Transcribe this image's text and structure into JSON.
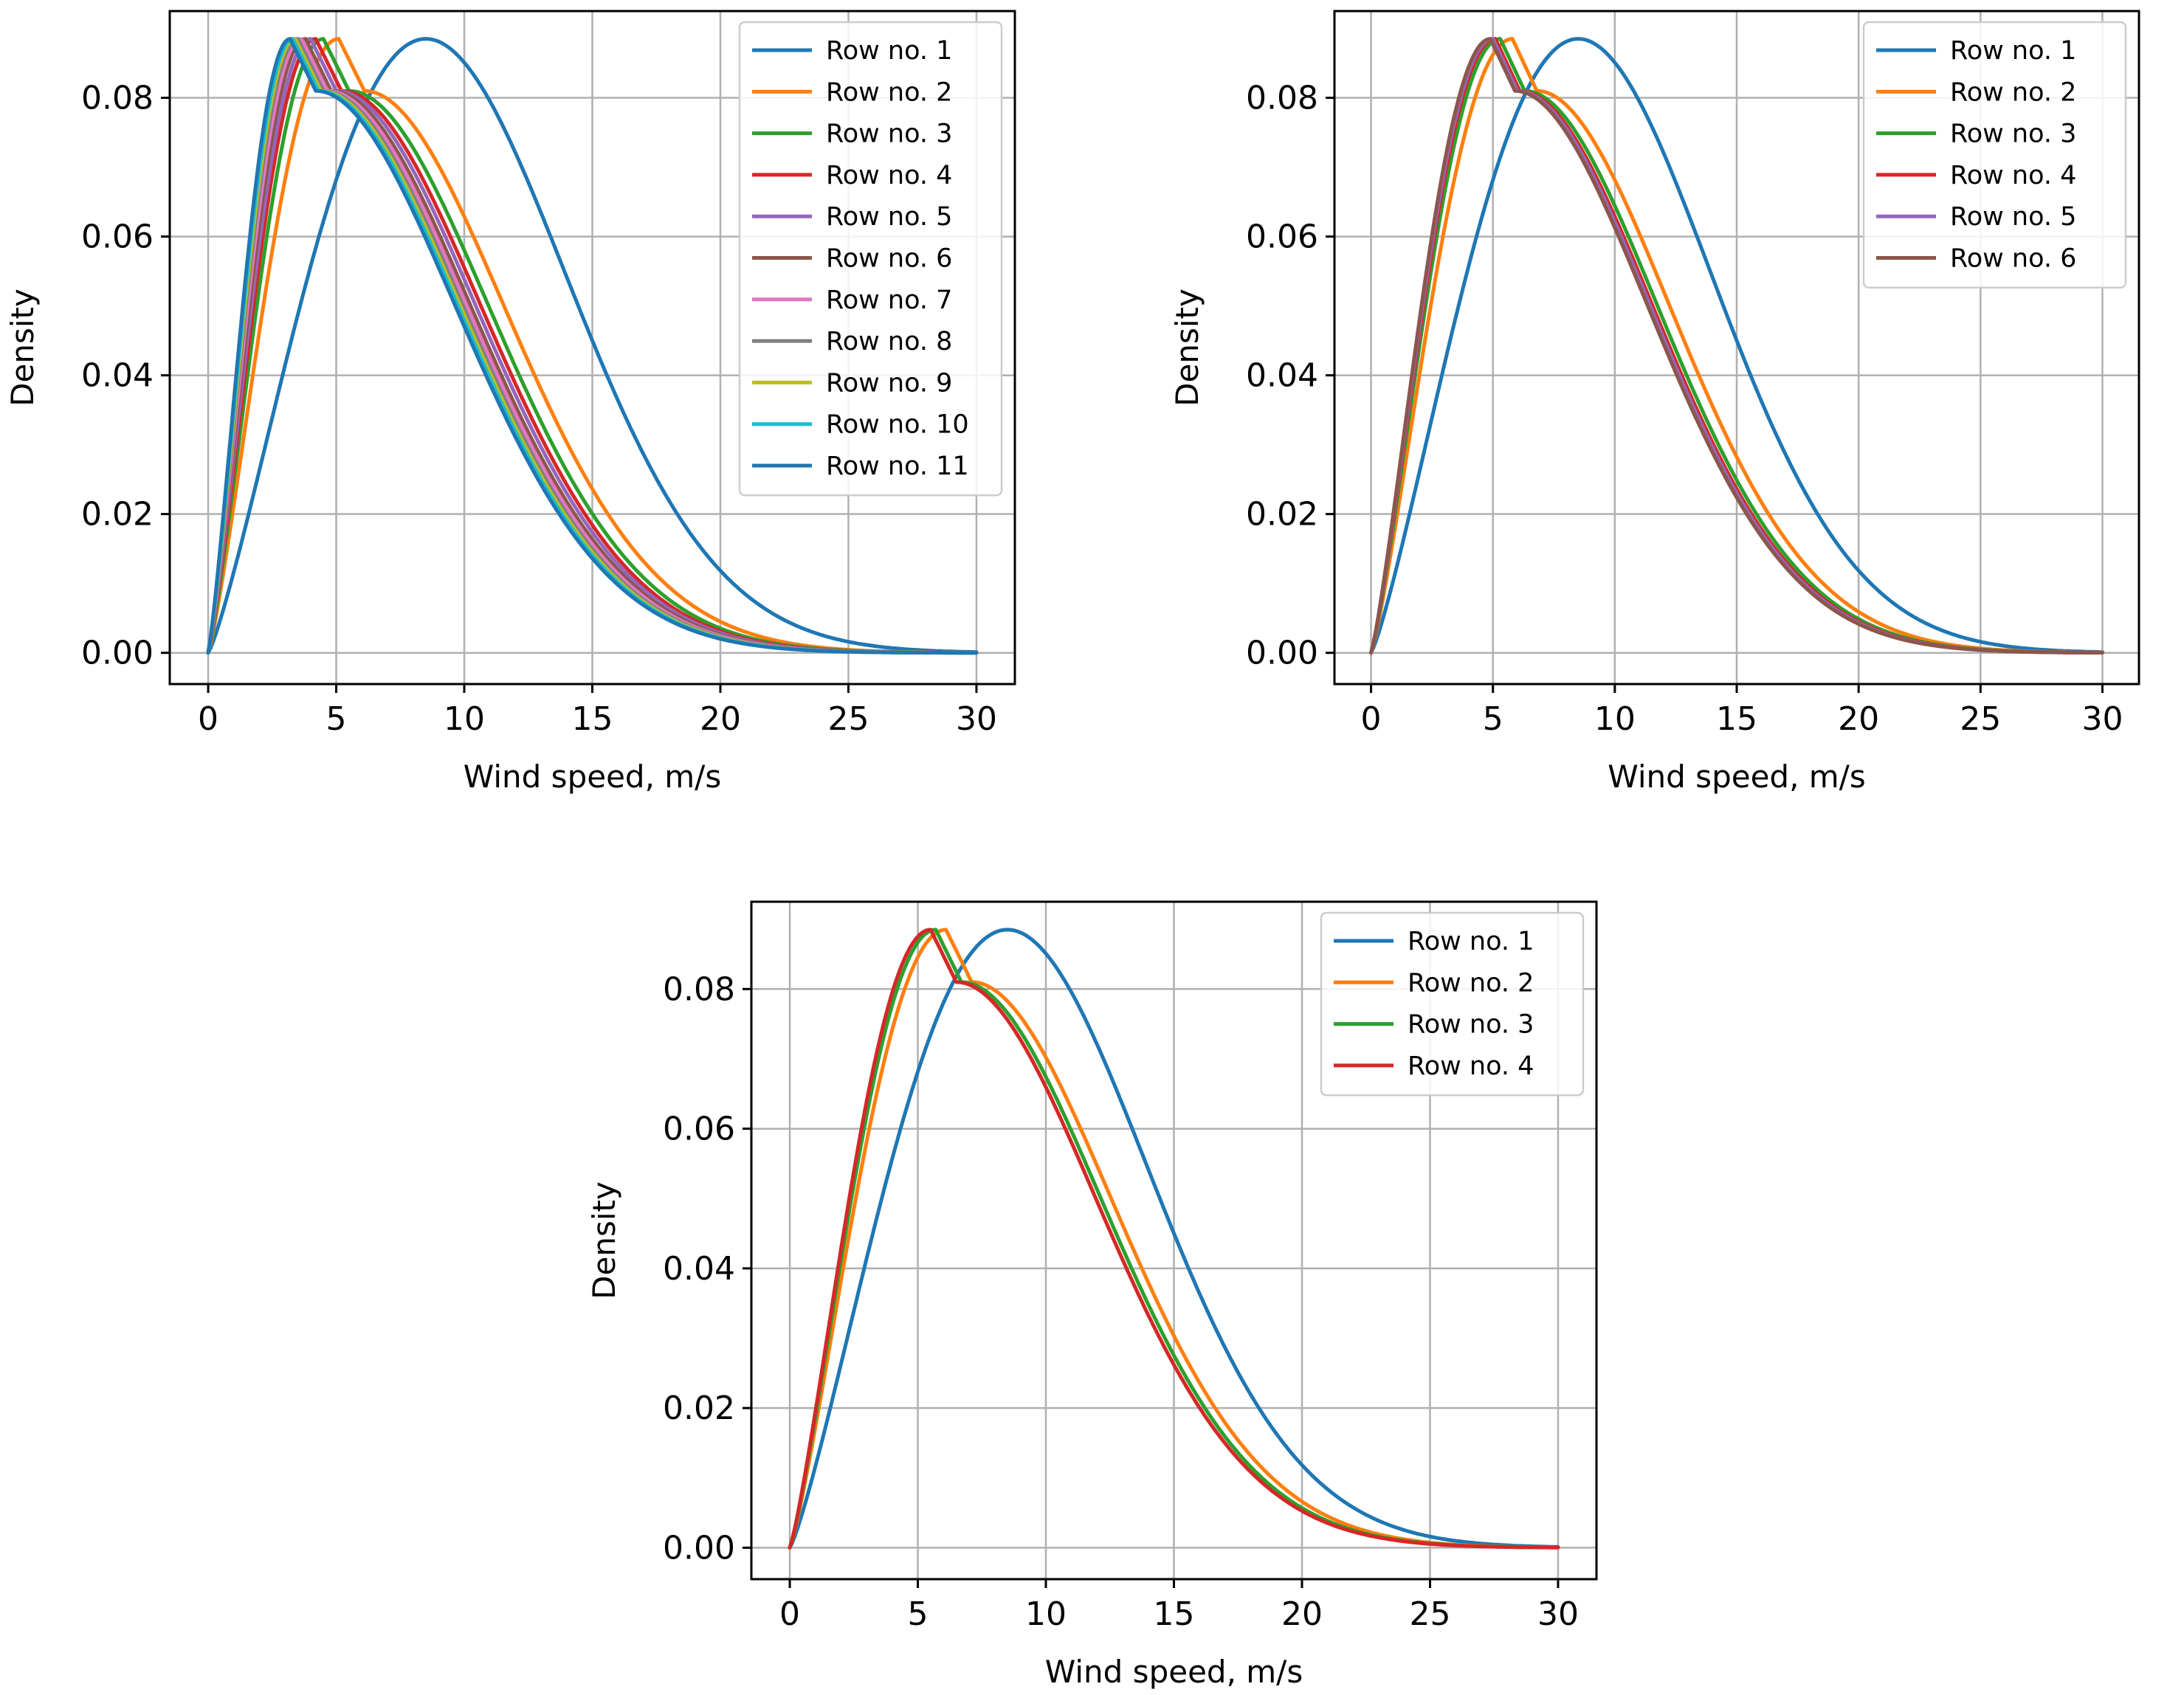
{
  "chart_data": [
    {
      "type": "line",
      "panel": "top-left",
      "xlabel": "Wind speed, m/s",
      "ylabel": "Density",
      "xlim": [
        -1.5,
        31.5
      ],
      "ylim": [
        -0.0045,
        0.0925
      ],
      "xticks": [
        0,
        5,
        10,
        15,
        20,
        25,
        30
      ],
      "yticks": [
        "0.00",
        "0.02",
        "0.04",
        "0.06",
        "0.08"
      ],
      "grid": true,
      "legend_position": "top-right",
      "series": [
        {
          "name": "Row no. 1",
          "color": "#1f77b4",
          "peak_speed": 8.5
        },
        {
          "name": "Row no. 2",
          "color": "#ff7f0e",
          "peak_speed": 5.1
        },
        {
          "name": "Row no. 3",
          "color": "#2ca02c",
          "peak_speed": 4.5
        },
        {
          "name": "Row no. 4",
          "color": "#d62728",
          "peak_speed": 4.2
        },
        {
          "name": "Row no. 5",
          "color": "#9467bd",
          "peak_speed": 4.0
        },
        {
          "name": "Row no. 6",
          "color": "#8c564b",
          "peak_speed": 3.8
        },
        {
          "name": "Row no. 7",
          "color": "#e377c2",
          "peak_speed": 3.65
        },
        {
          "name": "Row no. 8",
          "color": "#7f7f7f",
          "peak_speed": 3.5
        },
        {
          "name": "Row no. 9",
          "color": "#bcbd22",
          "peak_speed": 3.4
        },
        {
          "name": "Row no. 10",
          "color": "#17becf",
          "peak_speed": 3.3
        },
        {
          "name": "Row no. 11",
          "color": "#1f77b4",
          "peak_speed": 3.2
        }
      ]
    },
    {
      "type": "line",
      "panel": "top-right",
      "xlabel": "Wind speed, m/s",
      "ylabel": "Density",
      "xlim": [
        -1.5,
        31.5
      ],
      "ylim": [
        -0.0045,
        0.0925
      ],
      "xticks": [
        0,
        5,
        10,
        15,
        20,
        25,
        30
      ],
      "yticks": [
        "0.00",
        "0.02",
        "0.04",
        "0.06",
        "0.08"
      ],
      "grid": true,
      "legend_position": "top-right",
      "series": [
        {
          "name": "Row no. 1",
          "color": "#1f77b4",
          "peak_speed": 8.5
        },
        {
          "name": "Row no. 2",
          "color": "#ff7f0e",
          "peak_speed": 5.8
        },
        {
          "name": "Row no. 3",
          "color": "#2ca02c",
          "peak_speed": 5.3
        },
        {
          "name": "Row no. 4",
          "color": "#d62728",
          "peak_speed": 5.1
        },
        {
          "name": "Row no. 5",
          "color": "#9467bd",
          "peak_speed": 5.0
        },
        {
          "name": "Row no. 6",
          "color": "#8c564b",
          "peak_speed": 4.9
        }
      ]
    },
    {
      "type": "line",
      "panel": "bottom-center",
      "xlabel": "Wind speed, m/s",
      "ylabel": "Density",
      "xlim": [
        -1.5,
        31.5
      ],
      "ylim": [
        -0.0045,
        0.0925
      ],
      "xticks": [
        0,
        5,
        10,
        15,
        20,
        25,
        30
      ],
      "yticks": [
        "0.00",
        "0.02",
        "0.04",
        "0.06",
        "0.08"
      ],
      "grid": true,
      "legend_position": "top-right",
      "series": [
        {
          "name": "Row no. 1",
          "color": "#1f77b4",
          "peak_speed": 8.5
        },
        {
          "name": "Row no. 2",
          "color": "#ff7f0e",
          "peak_speed": 6.1
        },
        {
          "name": "Row no. 3",
          "color": "#2ca02c",
          "peak_speed": 5.7
        },
        {
          "name": "Row no. 4",
          "color": "#d62728",
          "peak_speed": 5.5
        }
      ]
    }
  ]
}
